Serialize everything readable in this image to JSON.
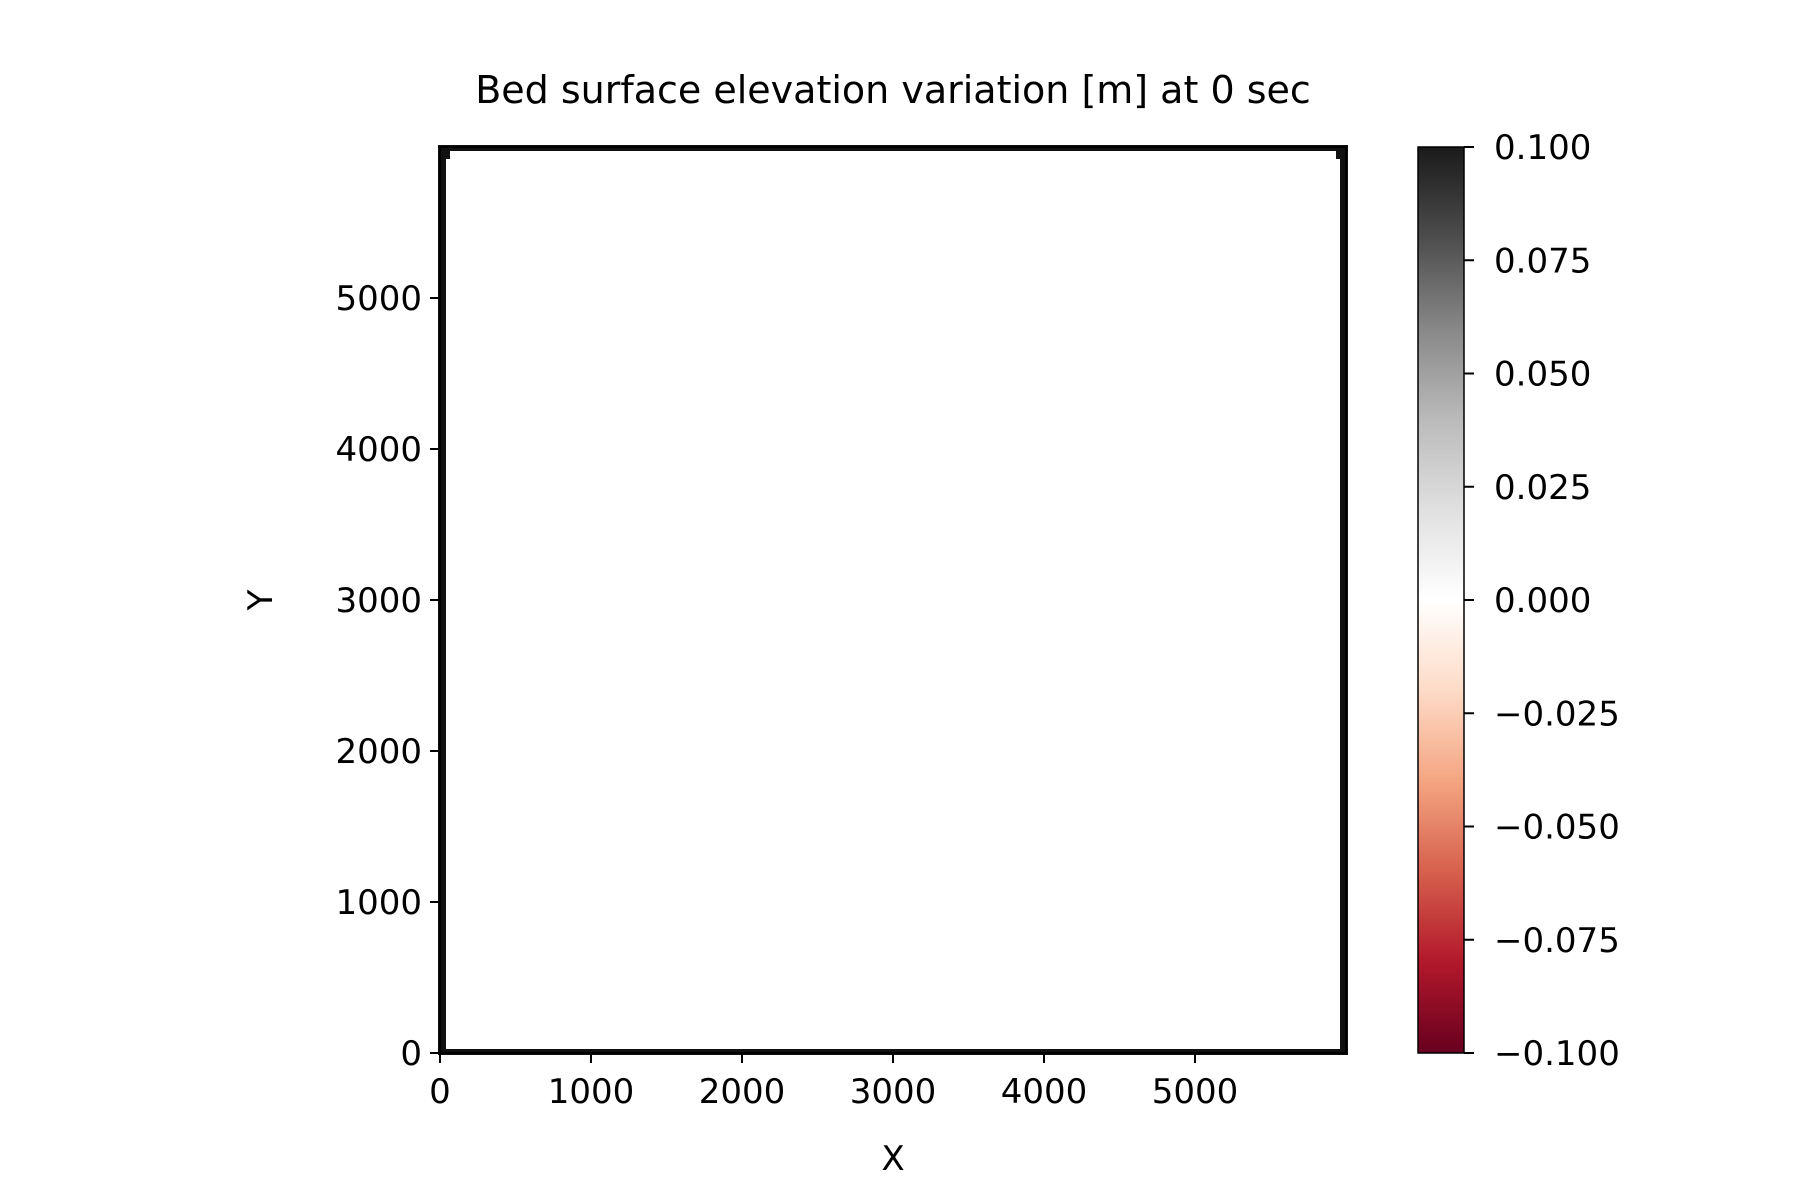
{
  "chart_data": {
    "type": "heatmap",
    "title": "Bed surface elevation variation [m] at 0 sec",
    "xlabel": "X",
    "ylabel": "Y",
    "xlim": [
      0,
      6000
    ],
    "ylim": [
      0,
      6000
    ],
    "x_ticks": [
      0,
      1000,
      2000,
      3000,
      4000,
      5000
    ],
    "y_ticks": [
      0,
      1000,
      2000,
      3000,
      4000,
      5000
    ],
    "x_tick_labels": [
      "0",
      "1000",
      "2000",
      "3000",
      "4000",
      "5000"
    ],
    "y_tick_labels": [
      "0",
      "1000",
      "2000",
      "3000",
      "4000",
      "5000"
    ],
    "field_value": 0.0,
    "boundary_cells": {
      "x": [
        0,
        6000
      ],
      "y": [
        0,
        6000
      ],
      "note_value": null
    },
    "grid": false,
    "colorbar": {
      "colormap": "RdGy",
      "range": [
        -0.1,
        0.1
      ],
      "ticks": [
        0.1,
        0.075,
        0.05,
        0.025,
        0.0,
        -0.025,
        -0.05,
        -0.075,
        -0.1
      ],
      "tick_labels": [
        "0.100",
        "0.075",
        "0.050",
        "0.025",
        "0.000",
        "−0.025",
        "−0.050",
        "−0.075",
        "−0.100"
      ],
      "colors": {
        "low": "#67001f",
        "low_mid1": "#b2182b",
        "low_mid2": "#d6604d",
        "low_mid3": "#f4a582",
        "low_mid4": "#fddbc7",
        "zero": "#ffffff",
        "high_mid1": "#e0e0e0",
        "high_mid2": "#bababa",
        "high_mid3": "#878787",
        "high_mid4": "#4d4d4d",
        "high": "#1a1a1a"
      },
      "placement": "right"
    }
  }
}
